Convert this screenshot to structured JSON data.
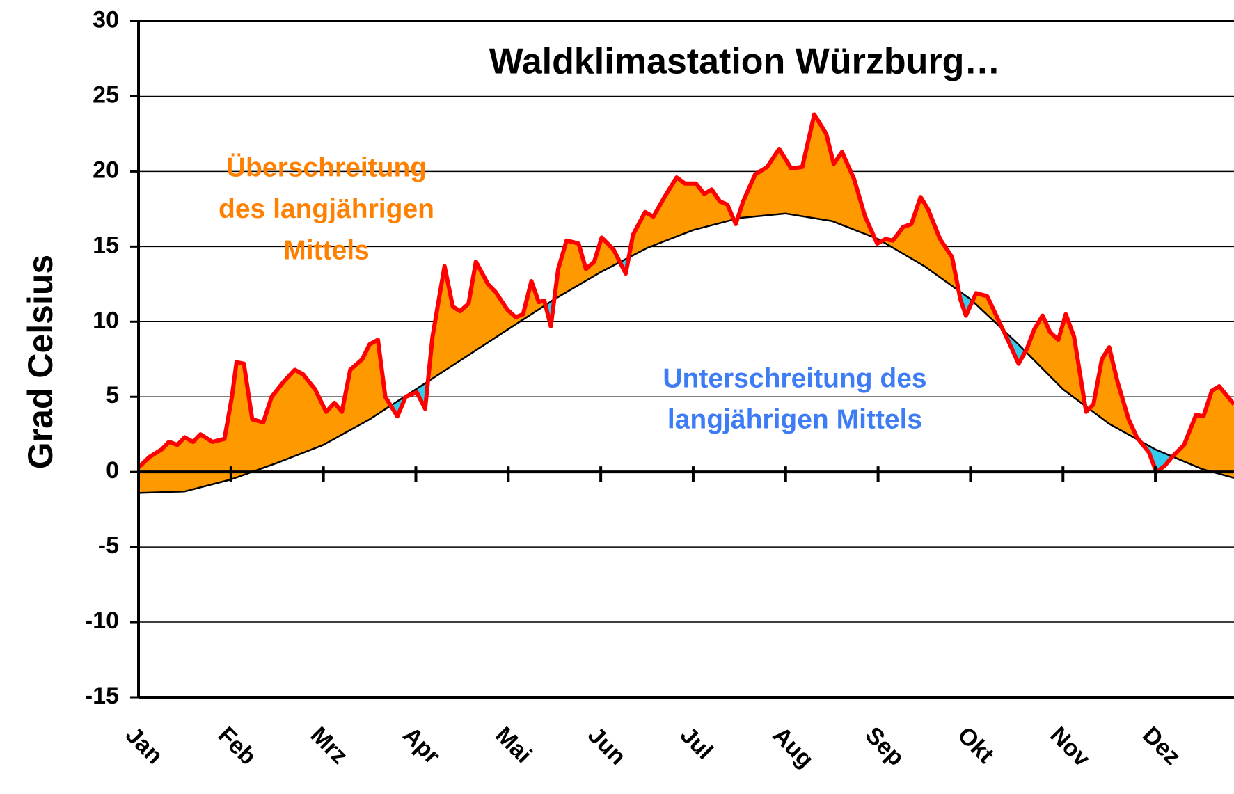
{
  "chart_data": {
    "type": "line",
    "title": "Waldklimastation Würzburg…",
    "y_label": "Grad Celsius",
    "annotations": [
      {
        "lines": [
          "Überschreitung",
          "des langjährigen",
          "Mittels"
        ],
        "color": "#ff8000"
      },
      {
        "lines": [
          "Unterschreitung des",
          "langjährigen Mittels"
        ],
        "color": "#3d7cf5"
      }
    ],
    "fill_above_color": "#ff9900",
    "fill_below_color": "#33ccee",
    "xlim": [
      0,
      11.85
    ],
    "xticks": [
      {
        "value": 0,
        "label": "Jan"
      },
      {
        "value": 1,
        "label": "Feb"
      },
      {
        "value": 2,
        "label": "Mrz"
      },
      {
        "value": 3,
        "label": "Apr"
      },
      {
        "value": 4,
        "label": "Mai"
      },
      {
        "value": 5,
        "label": "Jun"
      },
      {
        "value": 6,
        "label": "Jul"
      },
      {
        "value": 7,
        "label": "Aug"
      },
      {
        "value": 8,
        "label": "Sep"
      },
      {
        "value": 9,
        "label": "Okt"
      },
      {
        "value": 10,
        "label": "Nov"
      },
      {
        "value": 11,
        "label": "Dez"
      }
    ],
    "ylim": [
      -15,
      30
    ],
    "yticks": [
      -15,
      -10,
      -5,
      0,
      5,
      10,
      15,
      20,
      25,
      30
    ],
    "grid": true,
    "series": [
      {
        "color": "#ff0000",
        "x": [
          0.0,
          0.12,
          0.25,
          0.33,
          0.42,
          0.5,
          0.59,
          0.67,
          0.8,
          0.93,
          1.01,
          1.06,
          1.14,
          1.23,
          1.35,
          1.44,
          1.57,
          1.69,
          1.78,
          1.91,
          2.03,
          2.12,
          2.2,
          2.29,
          2.42,
          2.5,
          2.59,
          2.67,
          2.8,
          2.89,
          3.01,
          3.1,
          3.18,
          3.31,
          3.4,
          3.48,
          3.57,
          3.65,
          3.78,
          3.86,
          3.99,
          4.08,
          4.16,
          4.25,
          4.33,
          4.39,
          4.46,
          4.54,
          4.63,
          4.76,
          4.84,
          4.93,
          5.01,
          5.14,
          5.27,
          5.35,
          5.48,
          5.57,
          5.69,
          5.82,
          5.91,
          6.03,
          6.12,
          6.2,
          6.29,
          6.37,
          6.46,
          6.54,
          6.67,
          6.8,
          6.93,
          7.06,
          7.18,
          7.31,
          7.44,
          7.52,
          7.61,
          7.74,
          7.86,
          7.99,
          8.08,
          8.16,
          8.27,
          8.36,
          8.46,
          8.54,
          8.67,
          8.8,
          8.89,
          8.95,
          9.06,
          9.18,
          9.31,
          9.44,
          9.52,
          9.61,
          9.69,
          9.78,
          9.86,
          9.95,
          10.03,
          10.12,
          10.25,
          10.33,
          10.42,
          10.5,
          10.59,
          10.71,
          10.8,
          10.93,
          11.01,
          11.1,
          11.18,
          11.31,
          11.44,
          11.52,
          11.61,
          11.69,
          11.85
        ],
        "values": [
          0.3,
          1.0,
          1.5,
          2.0,
          1.8,
          2.3,
          2.0,
          2.5,
          2.0,
          2.2,
          5.0,
          7.3,
          7.2,
          3.5,
          3.3,
          5.0,
          6.0,
          6.8,
          6.5,
          5.5,
          4.0,
          4.6,
          4.0,
          6.8,
          7.5,
          8.5,
          8.8,
          5.0,
          3.7,
          5.0,
          5.3,
          4.2,
          9.0,
          13.7,
          11.0,
          10.7,
          11.2,
          14.0,
          12.5,
          12.0,
          10.8,
          10.3,
          10.5,
          12.7,
          11.3,
          11.4,
          9.7,
          13.5,
          15.4,
          15.2,
          13.5,
          14.0,
          15.6,
          14.8,
          13.2,
          15.8,
          17.3,
          17.0,
          18.3,
          19.6,
          19.2,
          19.2,
          18.5,
          18.8,
          18.0,
          17.8,
          16.5,
          18.0,
          19.8,
          20.3,
          21.5,
          20.2,
          20.3,
          23.8,
          22.5,
          20.5,
          21.3,
          19.5,
          17.0,
          15.2,
          15.5,
          15.4,
          16.3,
          16.5,
          18.3,
          17.5,
          15.5,
          14.3,
          11.5,
          10.4,
          11.9,
          11.7,
          10.0,
          8.3,
          7.2,
          8.2,
          9.5,
          10.4,
          9.3,
          8.8,
          10.5,
          9.0,
          4.0,
          4.5,
          7.5,
          8.3,
          6.0,
          3.5,
          2.3,
          1.3,
          0.0,
          0.4,
          1.0,
          1.8,
          3.8,
          3.7,
          5.4,
          5.7,
          4.5
        ]
      },
      {
        "color": "#000000",
        "x": [
          0,
          0.5,
          1,
          1.5,
          2,
          2.5,
          3,
          3.5,
          4,
          4.5,
          5,
          5.5,
          6,
          6.5,
          7,
          7.5,
          8,
          8.5,
          9,
          9.5,
          10,
          10.5,
          11,
          11.5,
          11.85
        ],
        "values": [
          -1.4,
          -1.3,
          -0.5,
          0.6,
          1.8,
          3.5,
          5.5,
          7.5,
          9.5,
          11.5,
          13.3,
          14.9,
          16.1,
          16.9,
          17.2,
          16.7,
          15.5,
          13.7,
          11.5,
          8.6,
          5.5,
          3.2,
          1.5,
          0.2,
          -0.4
        ]
      }
    ]
  }
}
